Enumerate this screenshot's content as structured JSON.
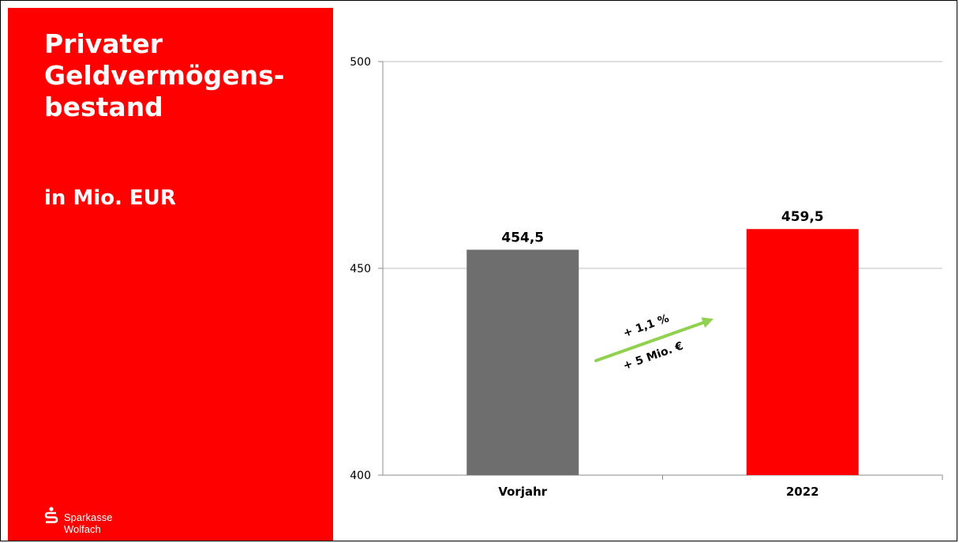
{
  "panel": {
    "title_lines": [
      "Privater",
      "Geldvermögens-",
      "bestand"
    ],
    "unit": "in Mio. EUR",
    "logo": {
      "line1": "Sparkasse",
      "line2": "Wolfach",
      "icon": "sparkasse-s-logo-icon"
    }
  },
  "colors": {
    "panel": "#ff0000",
    "bar_previous": "#6e6e6e",
    "bar_current": "#ff0000",
    "arrow": "#92d050"
  },
  "chart_data": {
    "type": "bar",
    "categories": [
      "Vorjahr",
      "2022"
    ],
    "values": [
      454.5,
      459.5
    ],
    "data_labels": [
      "454,5",
      "459,5"
    ],
    "ylim": [
      400,
      500
    ],
    "yticks": [
      "400",
      "450",
      "500"
    ],
    "grid": true,
    "annotation": {
      "line1": "+ 1,1 %",
      "line2": "+ 5 Mio. €"
    }
  }
}
